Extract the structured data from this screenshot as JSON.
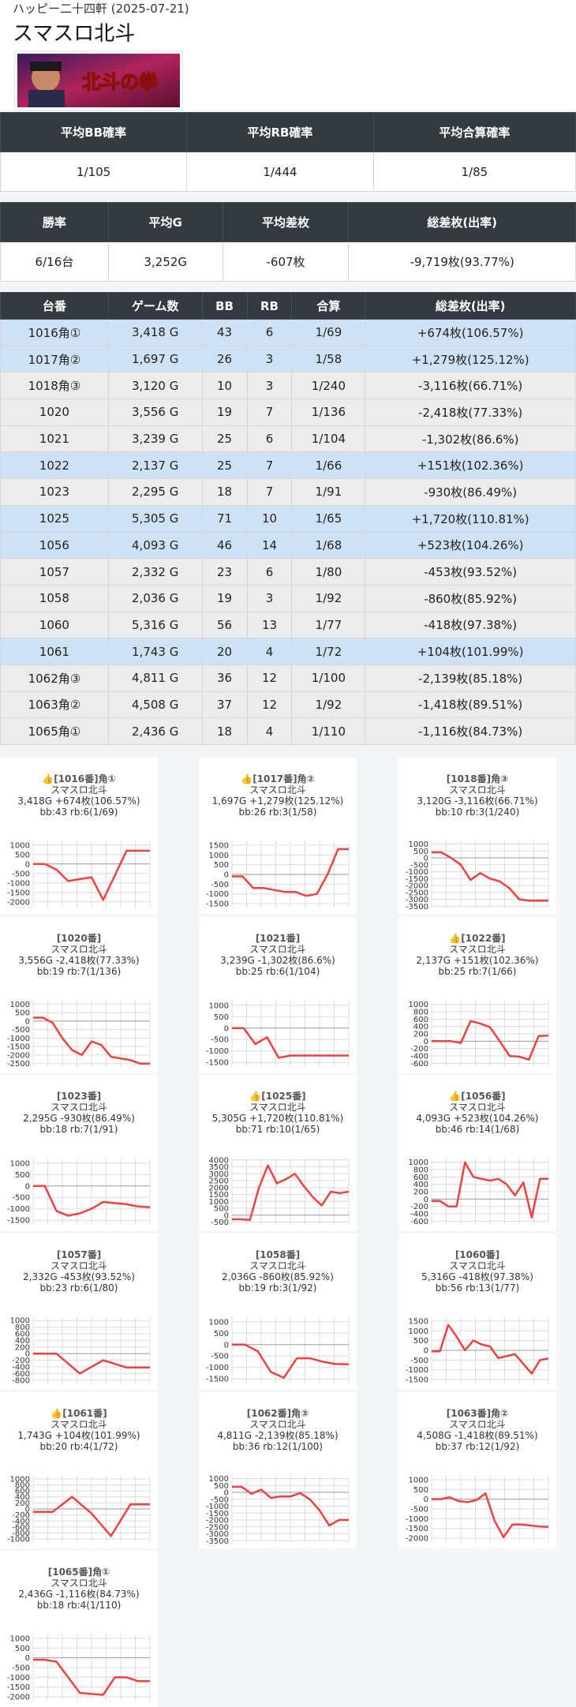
{
  "header": {
    "store": "ハッピー二十四軒 (2025-07-21)",
    "title": "スマスロ北斗",
    "banner_text": "北斗の拳"
  },
  "summary1": {
    "headers": [
      "平均BB確率",
      "平均RB確率",
      "平均合算確率"
    ],
    "values": [
      "1/105",
      "1/444",
      "1/85"
    ]
  },
  "summary2": {
    "headers": [
      "勝率",
      "平均G",
      "平均差枚",
      "総差枚(出率)"
    ],
    "values": [
      "6/16台",
      "3,252G",
      "-607枚",
      "-9,719枚(93.77%)"
    ]
  },
  "table": {
    "headers": [
      "台番",
      "ゲーム数",
      "BB",
      "RB",
      "合算",
      "総差枚(出率)"
    ],
    "rows": [
      [
        "1016角①",
        "3,418 G",
        "43",
        "6",
        "1/69",
        "+674枚(106.57%)"
      ],
      [
        "1017角②",
        "1,697 G",
        "26",
        "3",
        "1/58",
        "+1,279枚(125.12%)"
      ],
      [
        "1018角③",
        "3,120 G",
        "10",
        "3",
        "1/240",
        "-3,116枚(66.71%)"
      ],
      [
        "1020",
        "3,556 G",
        "19",
        "7",
        "1/136",
        "-2,418枚(77.33%)"
      ],
      [
        "1021",
        "3,239 G",
        "25",
        "6",
        "1/104",
        "-1,302枚(86.6%)"
      ],
      [
        "1022",
        "2,137 G",
        "25",
        "7",
        "1/66",
        "+151枚(102.36%)"
      ],
      [
        "1023",
        "2,295 G",
        "18",
        "7",
        "1/91",
        "-930枚(86.49%)"
      ],
      [
        "1025",
        "5,305 G",
        "71",
        "10",
        "1/65",
        "+1,720枚(110.81%)"
      ],
      [
        "1056",
        "4,093 G",
        "46",
        "14",
        "1/68",
        "+523枚(104.26%)"
      ],
      [
        "1057",
        "2,332 G",
        "23",
        "6",
        "1/80",
        "-453枚(93.52%)"
      ],
      [
        "1058",
        "2,036 G",
        "19",
        "3",
        "1/92",
        "-860枚(85.92%)"
      ],
      [
        "1060",
        "5,316 G",
        "56",
        "13",
        "1/77",
        "-418枚(97.38%)"
      ],
      [
        "1061",
        "1,743 G",
        "20",
        "4",
        "1/72",
        "+104枚(101.99%)"
      ],
      [
        "1062角③",
        "4,811 G",
        "36",
        "12",
        "1/100",
        "-2,139枚(85.18%)"
      ],
      [
        "1063角②",
        "4,508 G",
        "37",
        "12",
        "1/92",
        "-1,418枚(89.51%)"
      ],
      [
        "1065角①",
        "2,436 G",
        "18",
        "4",
        "1/110",
        "-1,116枚(84.73%)"
      ]
    ]
  },
  "colors": {
    "header_bg": "#343a40",
    "plus_row": "#cfe2f5",
    "minus_row": "#ececec",
    "line": "#f04040",
    "thumb": "#f0a020"
  },
  "cards": [
    {
      "head": "[1016番]角①",
      "thumb": "👍",
      "l2": "スマスロ北斗",
      "l3": "3,418G +674枚(106.57%)",
      "l4": "bb:43 rb:6(1/69)"
    },
    {
      "head": "[1017番]角②",
      "thumb": "👍",
      "l2": "スマスロ北斗",
      "l3": "1,697G +1,279枚(125.12%)",
      "l4": "bb:26 rb:3(1/58)"
    },
    {
      "head": "[1018番]角③",
      "thumb": "",
      "l2": "スマスロ北斗",
      "l3": "3,120G -3,116枚(66.71%)",
      "l4": "bb:10 rb:3(1/240)"
    },
    {
      "head": "[1020番]",
      "thumb": "",
      "l2": "スマスロ北斗",
      "l3": "3,556G -2,418枚(77.33%)",
      "l4": "bb:19 rb:7(1/136)"
    },
    {
      "head": "[1021番]",
      "thumb": "",
      "l2": "スマスロ北斗",
      "l3": "3,239G -1,302枚(86.6%)",
      "l4": "bb:25 rb:6(1/104)"
    },
    {
      "head": "[1022番]",
      "thumb": "👍",
      "l2": "スマスロ北斗",
      "l3": "2,137G +151枚(102.36%)",
      "l4": "bb:25 rb:7(1/66)"
    },
    {
      "head": "[1023番]",
      "thumb": "",
      "l2": "スマスロ北斗",
      "l3": "2,295G -930枚(86.49%)",
      "l4": "bb:18 rb:7(1/91)"
    },
    {
      "head": "[1025番]",
      "thumb": "👍",
      "l2": "スマスロ北斗",
      "l3": "5,305G +1,720枚(110.81%)",
      "l4": "bb:71 rb:10(1/65)"
    },
    {
      "head": "[1056番]",
      "thumb": "👍",
      "l2": "スマスロ北斗",
      "l3": "4,093G +523枚(104.26%)",
      "l4": "bb:46 rb:14(1/68)"
    },
    {
      "head": "[1057番]",
      "thumb": "",
      "l2": "スマスロ北斗",
      "l3": "2,332G -453枚(93.52%)",
      "l4": "bb:23 rb:6(1/80)"
    },
    {
      "head": "[1058番]",
      "thumb": "",
      "l2": "スマスロ北斗",
      "l3": "2,036G -860枚(85.92%)",
      "l4": "bb:19 rb:3(1/92)"
    },
    {
      "head": "[1060番]",
      "thumb": "",
      "l2": "スマスロ北斗",
      "l3": "5,316G -418枚(97.38%)",
      "l4": "bb:56 rb:13(1/77)"
    },
    {
      "head": "[1061番]",
      "thumb": "👍",
      "l2": "スマスロ北斗",
      "l3": "1,743G +104枚(101.99%)",
      "l4": "bb:20 rb:4(1/72)"
    },
    {
      "head": "[1062番]角③",
      "thumb": "",
      "l2": "スマスロ北斗",
      "l3": "4,811G -2,139枚(85.18%)",
      "l4": "bb:36 rb:12(1/100)"
    },
    {
      "head": "[1063番]角②",
      "thumb": "",
      "l2": "スマスロ北斗",
      "l3": "4,508G -1,418枚(89.51%)",
      "l4": "bb:37 rb:12(1/92)"
    },
    {
      "head": "[1065番]角①",
      "thumb": "",
      "l2": "スマスロ北斗",
      "l3": "2,436G -1,116枚(84.73%)",
      "l4": "bb:18 rb:4(1/110)"
    }
  ],
  "chart_data": [
    {
      "type": "line",
      "title": "[1016番]角①",
      "yticks": [
        1000,
        500,
        0,
        -500,
        -1000,
        -1500,
        -2000
      ],
      "ylim": [
        -2300,
        1200
      ],
      "values": [
        0,
        0,
        -300,
        -900,
        -800,
        -700,
        -1900,
        -600,
        700,
        700,
        700
      ]
    },
    {
      "type": "line",
      "title": "[1017番]角②",
      "yticks": [
        1500,
        1000,
        500,
        0,
        -500,
        -1000,
        -1500
      ],
      "ylim": [
        -1700,
        1700
      ],
      "values": [
        -100,
        -100,
        -700,
        -700,
        -800,
        -900,
        -900,
        -1100,
        -1000,
        0,
        1300,
        1300
      ]
    },
    {
      "type": "line",
      "title": "[1018番]角③",
      "yticks": [
        1000,
        500,
        0,
        -500,
        -1000,
        -1500,
        -2000,
        -2500,
        -3000,
        -3500
      ],
      "ylim": [
        -3600,
        1200
      ],
      "values": [
        400,
        400,
        0,
        -500,
        -1600,
        -1100,
        -1500,
        -1700,
        -2200,
        -3000,
        -3100,
        -3100,
        -3100
      ]
    },
    {
      "type": "line",
      "title": "[1020番]",
      "yticks": [
        1000,
        500,
        0,
        -500,
        -1000,
        -1500,
        -2000,
        -2500
      ],
      "ylim": [
        -2700,
        1200
      ],
      "values": [
        200,
        200,
        -100,
        -1000,
        -1700,
        -2000,
        -1200,
        -1400,
        -2100,
        -2200,
        -2300,
        -2500,
        -2500
      ]
    },
    {
      "type": "line",
      "title": "[1021番]",
      "yticks": [
        1000,
        500,
        0,
        -500,
        -1000,
        -1500
      ],
      "ylim": [
        -1700,
        1200
      ],
      "values": [
        0,
        0,
        -700,
        -400,
        -1300,
        -1200,
        -1200,
        -1200,
        -1200,
        -1200,
        -1200
      ]
    },
    {
      "type": "line",
      "title": "[1022番]",
      "yticks": [
        1000,
        800,
        600,
        400,
        200,
        0,
        -200,
        -400,
        -600
      ],
      "ylim": [
        -700,
        1100
      ],
      "values": [
        0,
        0,
        0,
        -50,
        550,
        480,
        380,
        0,
        -400,
        -420,
        -500,
        140,
        150
      ]
    },
    {
      "type": "line",
      "title": "[1023番]",
      "yticks": [
        1000,
        500,
        0,
        -500,
        -1000,
        -1500
      ],
      "ylim": [
        -1700,
        1200
      ],
      "values": [
        0,
        0,
        -1100,
        -1300,
        -1200,
        -1000,
        -700,
        -750,
        -800,
        -900,
        -930
      ]
    },
    {
      "type": "line",
      "title": "[1025番]",
      "yticks": [
        4000,
        3500,
        3000,
        2500,
        2000,
        1500,
        1000,
        500,
        0,
        -500
      ],
      "ylim": [
        -700,
        4100
      ],
      "values": [
        -300,
        -300,
        -350,
        2000,
        3600,
        2300,
        2600,
        3000,
        2100,
        1300,
        700,
        1700,
        1600,
        1700
      ]
    },
    {
      "type": "line",
      "title": "[1056番]",
      "yticks": [
        1000,
        800,
        600,
        400,
        200,
        0,
        -200,
        -400,
        -600
      ],
      "ylim": [
        -700,
        1100
      ],
      "values": [
        -50,
        -50,
        -200,
        -200,
        1000,
        600,
        550,
        500,
        550,
        400,
        100,
        450,
        -500,
        550,
        550
      ]
    },
    {
      "type": "line",
      "title": "[1057番]",
      "yticks": [
        1000,
        800,
        600,
        400,
        200,
        0,
        -200,
        -400,
        -600,
        -800
      ],
      "ylim": [
        -900,
        1100
      ],
      "values": [
        0,
        0,
        -600,
        -200,
        -420,
        -420
      ]
    },
    {
      "type": "line",
      "title": "[1058番]",
      "yticks": [
        1000,
        500,
        0,
        -500,
        -1000,
        -1500
      ],
      "ylim": [
        -1700,
        1200
      ],
      "values": [
        0,
        0,
        -300,
        -1200,
        -1450,
        -600,
        -600,
        -750,
        -850,
        -860
      ]
    },
    {
      "type": "line",
      "title": "[1060番]",
      "yticks": [
        1500,
        1000,
        500,
        0,
        -500,
        -1000,
        -1500
      ],
      "ylim": [
        -1700,
        1700
      ],
      "values": [
        -50,
        -50,
        1300,
        700,
        0,
        500,
        300,
        200,
        -400,
        -300,
        -200,
        -700,
        -1200,
        -500,
        -420
      ]
    },
    {
      "type": "line",
      "title": "[1061番]",
      "yticks": [
        1000,
        800,
        600,
        400,
        200,
        0,
        -200,
        -400,
        -600,
        -800,
        -1000
      ],
      "ylim": [
        -1100,
        1100
      ],
      "values": [
        -100,
        -100,
        400,
        -150,
        -900,
        150,
        150
      ]
    },
    {
      "type": "line",
      "title": "[1062番]角③",
      "yticks": [
        1000,
        500,
        0,
        -500,
        -1000,
        -1500,
        -2000,
        -2500,
        -3000,
        -3500
      ],
      "ylim": [
        -3600,
        1200
      ],
      "values": [
        400,
        400,
        -100,
        200,
        -400,
        -300,
        -300,
        -50,
        -500,
        -1300,
        -2400,
        -2000,
        -2000
      ]
    },
    {
      "type": "line",
      "title": "[1063番]角②",
      "yticks": [
        1000,
        500,
        0,
        -500,
        -1000,
        -1500,
        -2000
      ],
      "ylim": [
        -2200,
        1200
      ],
      "values": [
        0,
        0,
        100,
        -100,
        -150,
        -50,
        300,
        -1100,
        -1950,
        -1300,
        -1300,
        -1350,
        -1400,
        -1420
      ]
    },
    {
      "type": "line",
      "title": "[1065番]角①",
      "yticks": [
        1000,
        500,
        0,
        -500,
        -1000,
        -1500,
        -2000
      ],
      "ylim": [
        -2200,
        1200
      ],
      "values": [
        -100,
        -100,
        -200,
        -1000,
        -1800,
        -1850,
        -1900,
        -1000,
        -1000,
        -1200,
        -1200
      ]
    }
  ]
}
